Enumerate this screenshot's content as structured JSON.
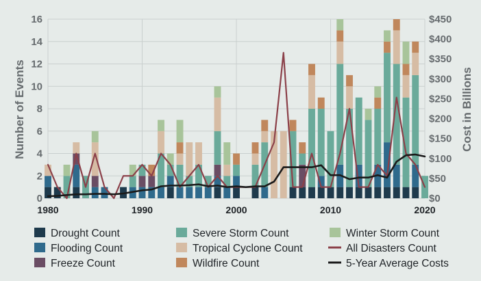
{
  "chart_data": {
    "type": "bar",
    "title": "",
    "ylabel_left": "Number of Events",
    "ylabel_right": "Cost in Billions",
    "ylim_left": [
      0,
      16
    ],
    "ylim_right": [
      0,
      450
    ],
    "x_tick_labels": [
      "1980",
      "1990",
      "2000",
      "2010",
      "2020"
    ],
    "y_left_ticks": [
      "0",
      "2",
      "4",
      "6",
      "8",
      "10",
      "12",
      "14",
      "16"
    ],
    "y_right_ticks": [
      "$0",
      "$50",
      "$100",
      "$150",
      "$200",
      "$250",
      "$300",
      "$350",
      "$400",
      "$450"
    ],
    "grid": true,
    "legend_position": "bottom",
    "years": [
      1980,
      1981,
      1982,
      1983,
      1984,
      1985,
      1986,
      1987,
      1988,
      1989,
      1990,
      1991,
      1992,
      1993,
      1994,
      1995,
      1996,
      1997,
      1998,
      1999,
      2000,
      2001,
      2002,
      2003,
      2004,
      2005,
      2006,
      2007,
      2008,
      2009,
      2010,
      2011,
      2012,
      2013,
      2014,
      2015,
      2016,
      2017,
      2018,
      2019,
      2020
    ],
    "series": [
      {
        "name": "Drought Count",
        "kind": "bar",
        "color": "#1e3a4c",
        "values": [
          1,
          1,
          0,
          1,
          0,
          0,
          0,
          0,
          1,
          0,
          0,
          0,
          0,
          1,
          0,
          0,
          0,
          0,
          1,
          0,
          1,
          0,
          1,
          0,
          0,
          0,
          1,
          1,
          1,
          1,
          1,
          1,
          1,
          1,
          1,
          1,
          1,
          1,
          1,
          1,
          0
        ]
      },
      {
        "name": "Flooding Count",
        "kind": "bar",
        "color": "#2f6a8c",
        "values": [
          1,
          0,
          0,
          2,
          0,
          1,
          1,
          0,
          0,
          1,
          1,
          1,
          1,
          1,
          1,
          1,
          1,
          1,
          1,
          1,
          1,
          0,
          0,
          1,
          0,
          0,
          0,
          0,
          0,
          1,
          0,
          2,
          0,
          2,
          0,
          2,
          4,
          2,
          0,
          2,
          0
        ]
      },
      {
        "name": "Freeze Count",
        "kind": "bar",
        "color": "#6a4d64",
        "values": [
          0,
          0,
          0,
          1,
          0,
          1,
          0,
          0,
          0,
          0,
          1,
          1,
          0,
          0,
          0,
          0,
          0,
          0,
          1,
          0,
          0,
          0,
          0,
          0,
          0,
          0,
          0,
          2,
          0,
          0,
          0,
          0,
          0,
          0,
          0,
          0,
          0,
          0,
          0,
          0,
          0
        ]
      },
      {
        "name": "Severe Storm Count",
        "kind": "bar",
        "color": "#6aaa9a",
        "values": [
          0,
          0,
          2,
          0,
          2,
          0,
          0,
          0,
          0,
          1,
          1,
          0,
          3,
          1,
          2,
          1,
          2,
          1,
          3,
          1,
          1,
          0,
          2,
          4,
          0,
          0,
          5,
          1,
          7,
          6,
          5,
          9,
          7,
          6,
          6,
          5,
          8,
          9,
          8,
          8,
          2
        ]
      },
      {
        "name": "Tropical Cyclone Count",
        "kind": "bar",
        "color": "#d6bca4",
        "values": [
          1,
          0,
          0,
          1,
          0,
          3,
          0,
          0,
          0,
          0,
          0,
          0,
          2,
          0,
          1,
          3,
          2,
          0,
          3,
          1,
          0,
          0,
          1,
          1,
          6,
          6,
          0,
          0,
          3,
          0,
          0,
          2,
          2,
          0,
          0,
          0,
          0,
          3,
          2,
          2,
          0
        ]
      },
      {
        "name": "Wildfire Count",
        "kind": "bar",
        "color": "#c0875c",
        "values": [
          0,
          0,
          0,
          0,
          0,
          0,
          0,
          0,
          0,
          0,
          0,
          1,
          0,
          0,
          1,
          0,
          0,
          0,
          0,
          0,
          1,
          0,
          1,
          1,
          0,
          0,
          1,
          1,
          1,
          1,
          0,
          1,
          1,
          0,
          0,
          1,
          1,
          1,
          1,
          1,
          0
        ]
      },
      {
        "name": "Winter Storm Count",
        "kind": "bar",
        "color": "#a8c49a",
        "values": [
          0,
          0,
          1,
          0,
          0,
          1,
          0,
          0,
          0,
          1,
          0,
          0,
          1,
          1,
          2,
          0,
          0,
          0,
          1,
          2,
          0,
          0,
          0,
          0,
          0,
          0,
          0,
          0,
          0,
          0,
          0,
          1,
          0,
          0,
          1,
          1,
          1,
          0,
          2,
          0,
          0
        ]
      },
      {
        "name": "All Disasters Count",
        "kind": "line",
        "color": "#8b4049",
        "axis": "left",
        "values": [
          3,
          1,
          0,
          4,
          1,
          4,
          1,
          0,
          2,
          2,
          3,
          2,
          4,
          3,
          1,
          2,
          3,
          1,
          2,
          1,
          1,
          1,
          1,
          3,
          5,
          13,
          1,
          1,
          4,
          1,
          1,
          4,
          8,
          1,
          1,
          3,
          2,
          9,
          4,
          3,
          1
        ]
      },
      {
        "name": "5-Year Average Costs",
        "kind": "line",
        "color": "#1a1a1a",
        "axis": "right",
        "values": [
          5,
          6,
          8,
          10,
          10,
          11,
          11,
          10,
          12,
          16,
          20,
          22,
          30,
          32,
          32,
          33,
          35,
          30,
          32,
          28,
          30,
          28,
          30,
          30,
          42,
          78,
          78,
          78,
          78,
          83,
          58,
          58,
          48,
          52,
          52,
          58,
          52,
          92,
          108,
          110,
          105
        ]
      }
    ]
  }
}
